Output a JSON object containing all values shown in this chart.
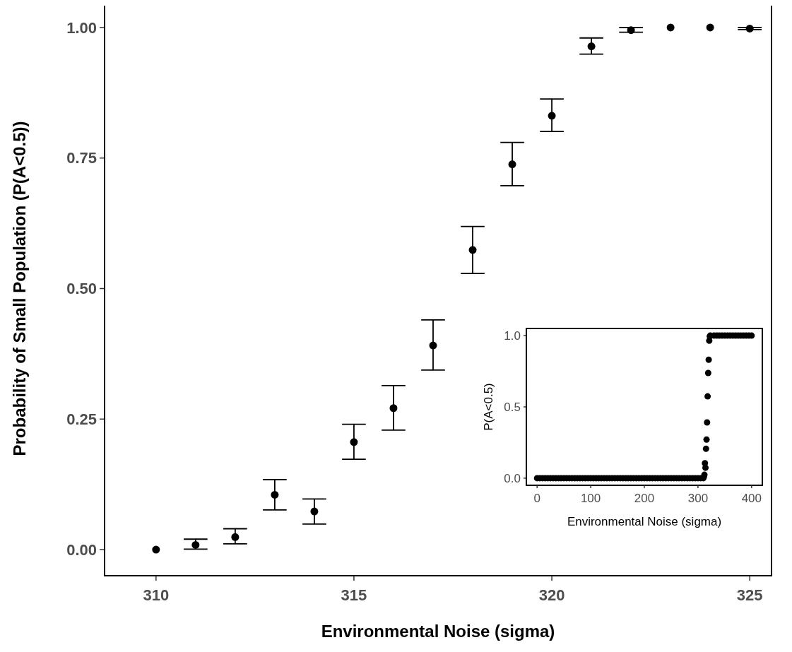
{
  "chart_data": [
    {
      "type": "scatter",
      "xlabel": "Environmental Noise (sigma)",
      "ylabel": "Probability of Small Population (P(A<0.5))",
      "x": [
        310,
        311,
        312,
        313,
        314,
        315,
        316,
        317,
        318,
        319,
        320,
        321,
        322,
        323,
        324,
        325
      ],
      "color": "#000000",
      "values": [
        0,
        0.009,
        0.024,
        0.105,
        0.073,
        0.206,
        0.271,
        0.391,
        0.574,
        0.738,
        0.831,
        0.964,
        0.995,
        1,
        1,
        0.998
      ],
      "errors": [
        null,
        [
          0.001,
          0.02
        ],
        [
          0.011,
          0.04
        ],
        [
          0.076,
          0.134
        ],
        [
          0.049,
          0.097
        ],
        [
          0.173,
          0.24
        ],
        [
          0.229,
          0.314
        ],
        [
          0.344,
          0.44
        ],
        [
          0.529,
          0.619
        ],
        [
          0.697,
          0.78
        ],
        [
          0.801,
          0.863
        ],
        [
          0.949,
          0.98
        ],
        [
          0.991,
          1
        ],
        null,
        null,
        [
          0.996,
          1
        ]
      ],
      "xlim": [
        308.7,
        325.55
      ],
      "xticks": [
        310,
        315,
        320,
        325
      ],
      "ylim": [
        -0.05,
        1.05
      ],
      "yticks": [
        {
          "value": 0,
          "label": "0.00"
        },
        {
          "value": 0.25,
          "label": "0.25"
        },
        {
          "value": 0.5,
          "label": "0.50"
        },
        {
          "value": 0.75,
          "label": "0.75"
        },
        {
          "value": 1,
          "label": "1.00"
        }
      ],
      "grid": false,
      "marker": "circle"
    },
    {
      "type": "scatter",
      "xlabel": "Environmental Noise (sigma)",
      "ylabel": "P(A<0.5)",
      "x": [
        0,
        5,
        10,
        15,
        20,
        25,
        30,
        35,
        40,
        45,
        50,
        55,
        60,
        65,
        70,
        75,
        80,
        85,
        90,
        95,
        100,
        105,
        110,
        115,
        120,
        125,
        130,
        135,
        140,
        145,
        150,
        155,
        160,
        165,
        170,
        175,
        180,
        185,
        190,
        195,
        200,
        205,
        210,
        215,
        220,
        225,
        230,
        235,
        240,
        245,
        250,
        255,
        260,
        265,
        270,
        275,
        280,
        285,
        290,
        295,
        300,
        305,
        310,
        311,
        312,
        313,
        314,
        315,
        316,
        317,
        318,
        319,
        320,
        321,
        322,
        323,
        330,
        335,
        340,
        345,
        350,
        355,
        360,
        365,
        370,
        375,
        380,
        385,
        390,
        395,
        400
      ],
      "series": [
        {
          "color": "#000000",
          "values": [
            0,
            0,
            0,
            0,
            0,
            0,
            0,
            0,
            0,
            0,
            0,
            0,
            0,
            0,
            0,
            0,
            0,
            0,
            0,
            0,
            0,
            0,
            0,
            0,
            0,
            0,
            0,
            0,
            0,
            0,
            0,
            0,
            0,
            0,
            0,
            0,
            0,
            0,
            0,
            0,
            0,
            0,
            0,
            0,
            0,
            0,
            0,
            0,
            0,
            0,
            0,
            0,
            0,
            0,
            0,
            0,
            0,
            0,
            0,
            0,
            0,
            0,
            0,
            0.009,
            0.024,
            0.105,
            0.073,
            0.206,
            0.271,
            0.391,
            0.574,
            0.738,
            0.831,
            0.964,
            0.995,
            1,
            1,
            1,
            1,
            1,
            1,
            1,
            1,
            1,
            1,
            1,
            1,
            1,
            1,
            1,
            1
          ]
        }
      ],
      "xlim": [
        -20,
        420
      ],
      "xticks": [
        0,
        100,
        200,
        300,
        400
      ],
      "ylim": [
        -0.05,
        1.05
      ],
      "yticks": [
        {
          "value": 0,
          "label": "0.0"
        },
        {
          "value": 0.5,
          "label": "0.5"
        },
        {
          "value": 1,
          "label": "1.0"
        }
      ],
      "grid": false,
      "marker": "circle"
    }
  ]
}
